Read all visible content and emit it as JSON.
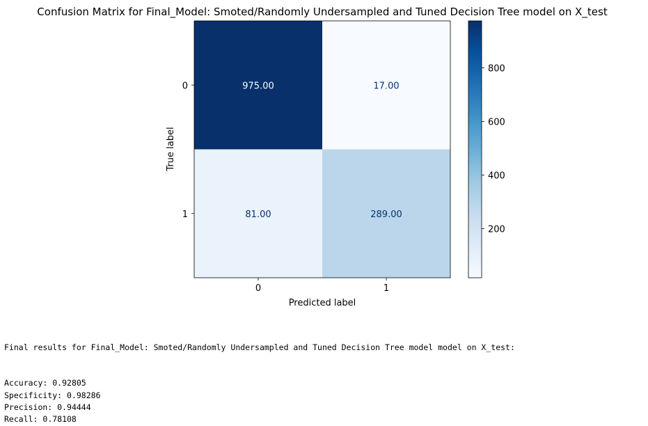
{
  "chart_data": {
    "type": "heatmap",
    "title": "Confusion Matrix for Final_Model: Smoted/Randomly Undersampled and Tuned Decision Tree model on X_test",
    "xlabel": "Predicted label",
    "ylabel": "True label",
    "x_categories": [
      "0",
      "1"
    ],
    "y_categories": [
      "0",
      "1"
    ],
    "matrix": [
      [
        975,
        17
      ],
      [
        81,
        289
      ]
    ],
    "cell_labels": [
      [
        "975.00",
        "17.00"
      ],
      [
        "81.00",
        "289.00"
      ]
    ],
    "colormap": "Blues",
    "colorbar": {
      "range": [
        17,
        975
      ],
      "ticks": [
        200,
        400,
        600,
        800
      ],
      "tick_labels": [
        "200",
        "400",
        "600",
        "800"
      ]
    },
    "grid": false
  },
  "results": {
    "header": "Final results for Final_Model: Smoted/Randomly Undersampled and Tuned Decision Tree model model on X_test:",
    "lines": [
      {
        "label": "Accuracy",
        "value": "0.92805"
      },
      {
        "label": "Specificity",
        "value": "0.98286"
      },
      {
        "label": "Precision",
        "value": "0.94444"
      },
      {
        "label": "Recall",
        "value": "0.78108"
      }
    ]
  }
}
